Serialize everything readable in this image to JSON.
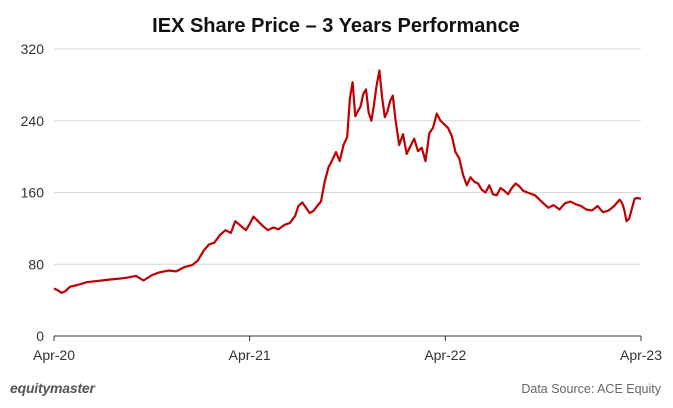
{
  "chart_data": {
    "type": "line",
    "title": "IEX Share Price – 3 Years Performance",
    "xlabel": "",
    "ylabel": "",
    "x_ticks": [
      "Apr-20",
      "Apr-21",
      "Apr-22",
      "Apr-23"
    ],
    "y_ticks": [
      "0",
      "80",
      "160",
      "240",
      "320"
    ],
    "ylim": [
      0,
      320
    ],
    "xlim": [
      "2020-04-01",
      "2023-04-01"
    ],
    "grid": "horizontal",
    "legend": "none",
    "series": [
      {
        "color": "#c00000",
        "points": [
          [
            "2020-04-01",
            53
          ],
          [
            "2020-04-08",
            51
          ],
          [
            "2020-04-15",
            48
          ],
          [
            "2020-04-22",
            50
          ],
          [
            "2020-05-01",
            55
          ],
          [
            "2020-05-15",
            57
          ],
          [
            "2020-06-01",
            60
          ],
          [
            "2020-06-15",
            61
          ],
          [
            "2020-07-01",
            62
          ],
          [
            "2020-07-15",
            63
          ],
          [
            "2020-08-01",
            64
          ],
          [
            "2020-08-15",
            65
          ],
          [
            "2020-09-01",
            67
          ],
          [
            "2020-09-15",
            62
          ],
          [
            "2020-10-01",
            68
          ],
          [
            "2020-10-15",
            71
          ],
          [
            "2020-11-01",
            73
          ],
          [
            "2020-11-15",
            72
          ],
          [
            "2020-12-01",
            77
          ],
          [
            "2020-12-15",
            79
          ],
          [
            "2020-12-25",
            84
          ],
          [
            "2021-01-05",
            95
          ],
          [
            "2021-01-15",
            102
          ],
          [
            "2021-01-25",
            104
          ],
          [
            "2021-02-05",
            113
          ],
          [
            "2021-02-15",
            118
          ],
          [
            "2021-02-25",
            115
          ],
          [
            "2021-03-05",
            128
          ],
          [
            "2021-03-15",
            123
          ],
          [
            "2021-03-25",
            118
          ],
          [
            "2021-04-01",
            125
          ],
          [
            "2021-04-08",
            133
          ],
          [
            "2021-04-15",
            129
          ],
          [
            "2021-04-25",
            123
          ],
          [
            "2021-05-05",
            118
          ],
          [
            "2021-05-15",
            121
          ],
          [
            "2021-05-25",
            119
          ],
          [
            "2021-06-05",
            124
          ],
          [
            "2021-06-15",
            126
          ],
          [
            "2021-06-25",
            134
          ],
          [
            "2021-07-01",
            145
          ],
          [
            "2021-07-08",
            149
          ],
          [
            "2021-07-15",
            143
          ],
          [
            "2021-07-22",
            137
          ],
          [
            "2021-07-30",
            140
          ],
          [
            "2021-08-05",
            145
          ],
          [
            "2021-08-12",
            150
          ],
          [
            "2021-08-19",
            172
          ],
          [
            "2021-08-26",
            188
          ],
          [
            "2021-09-02",
            196
          ],
          [
            "2021-09-09",
            205
          ],
          [
            "2021-09-16",
            195
          ],
          [
            "2021-09-23",
            213
          ],
          [
            "2021-09-30",
            222
          ],
          [
            "2021-10-05",
            265
          ],
          [
            "2021-10-10",
            283
          ],
          [
            "2021-10-15",
            245
          ],
          [
            "2021-10-20",
            251
          ],
          [
            "2021-10-25",
            256
          ],
          [
            "2021-10-30",
            270
          ],
          [
            "2021-11-04",
            275
          ],
          [
            "2021-11-09",
            249
          ],
          [
            "2021-11-14",
            240
          ],
          [
            "2021-11-19",
            258
          ],
          [
            "2021-11-24",
            280
          ],
          [
            "2021-11-29",
            296
          ],
          [
            "2021-12-04",
            266
          ],
          [
            "2021-12-09",
            244
          ],
          [
            "2021-12-14",
            250
          ],
          [
            "2021-12-19",
            262
          ],
          [
            "2021-12-24",
            268
          ],
          [
            "2021-12-29",
            241
          ],
          [
            "2022-01-05",
            213
          ],
          [
            "2022-01-12",
            225
          ],
          [
            "2022-01-19",
            203
          ],
          [
            "2022-01-26",
            212
          ],
          [
            "2022-02-02",
            220
          ],
          [
            "2022-02-09",
            206
          ],
          [
            "2022-02-16",
            210
          ],
          [
            "2022-02-23",
            195
          ],
          [
            "2022-03-02",
            226
          ],
          [
            "2022-03-09",
            232
          ],
          [
            "2022-03-16",
            248
          ],
          [
            "2022-03-23",
            240
          ],
          [
            "2022-03-30",
            236
          ],
          [
            "2022-04-06",
            232
          ],
          [
            "2022-04-13",
            223
          ],
          [
            "2022-04-20",
            205
          ],
          [
            "2022-04-27",
            198
          ],
          [
            "2022-05-04",
            180
          ],
          [
            "2022-05-11",
            168
          ],
          [
            "2022-05-18",
            177
          ],
          [
            "2022-05-25",
            172
          ],
          [
            "2022-06-01",
            170
          ],
          [
            "2022-06-08",
            163
          ],
          [
            "2022-06-15",
            160
          ],
          [
            "2022-06-22",
            168
          ],
          [
            "2022-06-29",
            158
          ],
          [
            "2022-07-06",
            157
          ],
          [
            "2022-07-13",
            165
          ],
          [
            "2022-07-20",
            162
          ],
          [
            "2022-07-27",
            158
          ],
          [
            "2022-08-03",
            165
          ],
          [
            "2022-08-10",
            170
          ],
          [
            "2022-08-17",
            167
          ],
          [
            "2022-08-24",
            162
          ],
          [
            "2022-09-01",
            160
          ],
          [
            "2022-09-15",
            157
          ],
          [
            "2022-09-29",
            149
          ],
          [
            "2022-10-10",
            143
          ],
          [
            "2022-10-20",
            146
          ],
          [
            "2022-10-31",
            141
          ],
          [
            "2022-11-10",
            148
          ],
          [
            "2022-11-20",
            150
          ],
          [
            "2022-11-30",
            147
          ],
          [
            "2022-12-10",
            145
          ],
          [
            "2022-12-20",
            141
          ],
          [
            "2022-12-31",
            140
          ],
          [
            "2023-01-10",
            145
          ],
          [
            "2023-01-20",
            138
          ],
          [
            "2023-01-31",
            140
          ],
          [
            "2023-02-10",
            145
          ],
          [
            "2023-02-20",
            152
          ],
          [
            "2023-02-25",
            148
          ],
          [
            "2023-03-01",
            140
          ],
          [
            "2023-03-05",
            128
          ],
          [
            "2023-03-10",
            131
          ],
          [
            "2023-03-15",
            142
          ],
          [
            "2023-03-20",
            153
          ],
          [
            "2023-03-25",
            154
          ],
          [
            "2023-04-01",
            153
          ]
        ]
      }
    ]
  },
  "footer": {
    "brand": "equitymaster",
    "source": "Data Source: ACE Equity"
  }
}
